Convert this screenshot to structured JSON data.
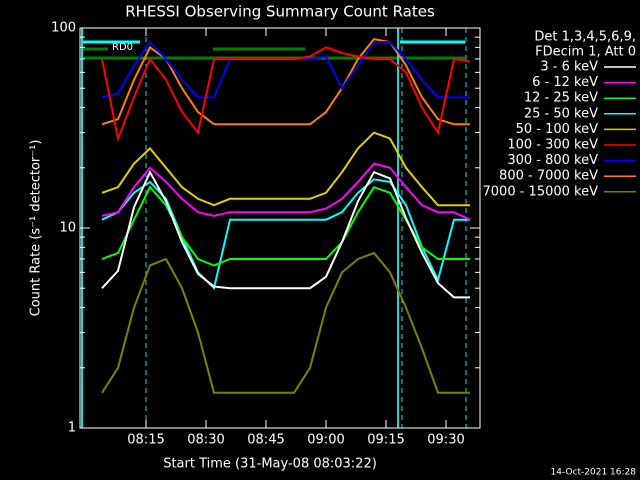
{
  "chart_data": {
    "type": "line",
    "title": "RHESSI Observing Summary Count Rates",
    "x_label": "Start Time (31-May-08 08:03:22)",
    "y_label": "Count Rate (s⁻¹ detector⁻¹)",
    "legend_header": [
      "Det 1,3,4,5,6,9,",
      "FDecim 1, Att 0"
    ],
    "annotation": "RD0",
    "footer": "14-Oct-2021 16:28",
    "log_y": true,
    "ylim": [
      1,
      100
    ],
    "yticks": [
      1,
      10,
      100
    ],
    "yminorticks": [
      2,
      3,
      4,
      5,
      6,
      7,
      8,
      9,
      20,
      30,
      40,
      50,
      60,
      70,
      80,
      90
    ],
    "xlim": [
      "07:58:30",
      "09:38:30"
    ],
    "xticks": [
      "08:15",
      "08:30",
      "08:45",
      "09:00",
      "09:15",
      "09:30"
    ],
    "dashed_lines": [
      "08:15",
      "09:19",
      "09:35"
    ],
    "dashed_color": "#00e0e0",
    "solid_lines": [
      "07:59",
      "09:18"
    ],
    "x": [
      "08:04",
      "08:08",
      "08:12",
      "08:16",
      "08:20",
      "08:24",
      "08:28",
      "08:32",
      "08:36",
      "08:40",
      "08:44",
      "08:48",
      "08:52",
      "08:56",
      "09:00",
      "09:04",
      "09:08",
      "09:12",
      "09:16",
      "09:20",
      "09:24",
      "09:28",
      "09:32",
      "09:36"
    ],
    "series": [
      {
        "name": "3 - 6 keV",
        "color": "#ffffff",
        "values": [
          5,
          6.1,
          12.7,
          19,
          13.6,
          8.5,
          5.9,
          5.1,
          5,
          5,
          5,
          5,
          5,
          5,
          5.7,
          8.5,
          13.6,
          19,
          17.7,
          11.2,
          7.5,
          5.3,
          4.5,
          4.5
        ]
      },
      {
        "name": "6 - 12 keV",
        "color": "#ff00ff",
        "values": [
          11.5,
          12,
          16,
          20,
          17,
          14,
          12,
          11.5,
          12,
          12,
          12,
          12,
          12,
          12,
          12.5,
          14,
          17,
          21,
          20,
          16,
          13,
          12,
          12,
          11
        ]
      },
      {
        "name": "12 - 25 keV",
        "color": "#00ff00",
        "values": [
          7,
          7.5,
          11,
          16,
          13,
          9,
          7,
          6.5,
          7,
          7,
          7,
          7,
          7,
          7,
          7,
          8.5,
          12,
          16,
          15,
          11,
          8,
          7,
          7,
          7
        ]
      },
      {
        "name": "25 - 50 keV",
        "color": "#00ffff",
        "values": [
          11,
          12,
          15,
          17,
          14,
          9,
          6,
          5,
          11,
          11,
          11,
          11,
          11,
          11,
          11,
          12,
          15,
          17.5,
          17,
          13,
          8,
          5.5,
          11,
          11
        ]
      },
      {
        "name": "50 - 100 keV",
        "color": "#e0d000",
        "values": [
          15,
          16,
          21,
          25,
          20,
          16,
          14,
          13,
          14,
          14,
          14,
          14,
          14,
          14,
          15,
          19,
          25,
          30,
          28,
          20,
          16,
          13,
          13,
          13
        ]
      },
      {
        "name": "100 - 300 keV",
        "color": "#ff0000",
        "values": [
          70,
          28,
          45,
          70,
          55,
          38,
          30,
          70,
          70,
          70,
          70,
          70,
          70,
          72,
          80,
          75,
          72,
          70,
          70,
          60,
          40,
          30,
          70,
          68
        ]
      },
      {
        "name": "300 - 800 keV",
        "color": "#0000ff",
        "values": [
          45,
          47,
          65,
          85,
          70,
          55,
          45,
          45,
          70,
          70,
          70,
          70,
          70,
          70,
          72,
          50,
          65,
          85,
          85,
          70,
          55,
          45,
          45,
          45
        ]
      },
      {
        "name": "800 - 7000 keV",
        "color": "#ff8000",
        "values": [
          33,
          35,
          55,
          80,
          70,
          50,
          38,
          33,
          33,
          33,
          33,
          33,
          33,
          33,
          38,
          50,
          70,
          88,
          85,
          65,
          45,
          35,
          33,
          33
        ]
      },
      {
        "name": "7000 - 15000 keV",
        "color": "#808000",
        "values": [
          1.5,
          2,
          4,
          6.5,
          7,
          5,
          3,
          1.5,
          1.5,
          1.5,
          1.5,
          1.5,
          1.5,
          2,
          4,
          6,
          7,
          7.5,
          6,
          4,
          2.5,
          1.5,
          1.5,
          1.5
        ]
      }
    ]
  }
}
